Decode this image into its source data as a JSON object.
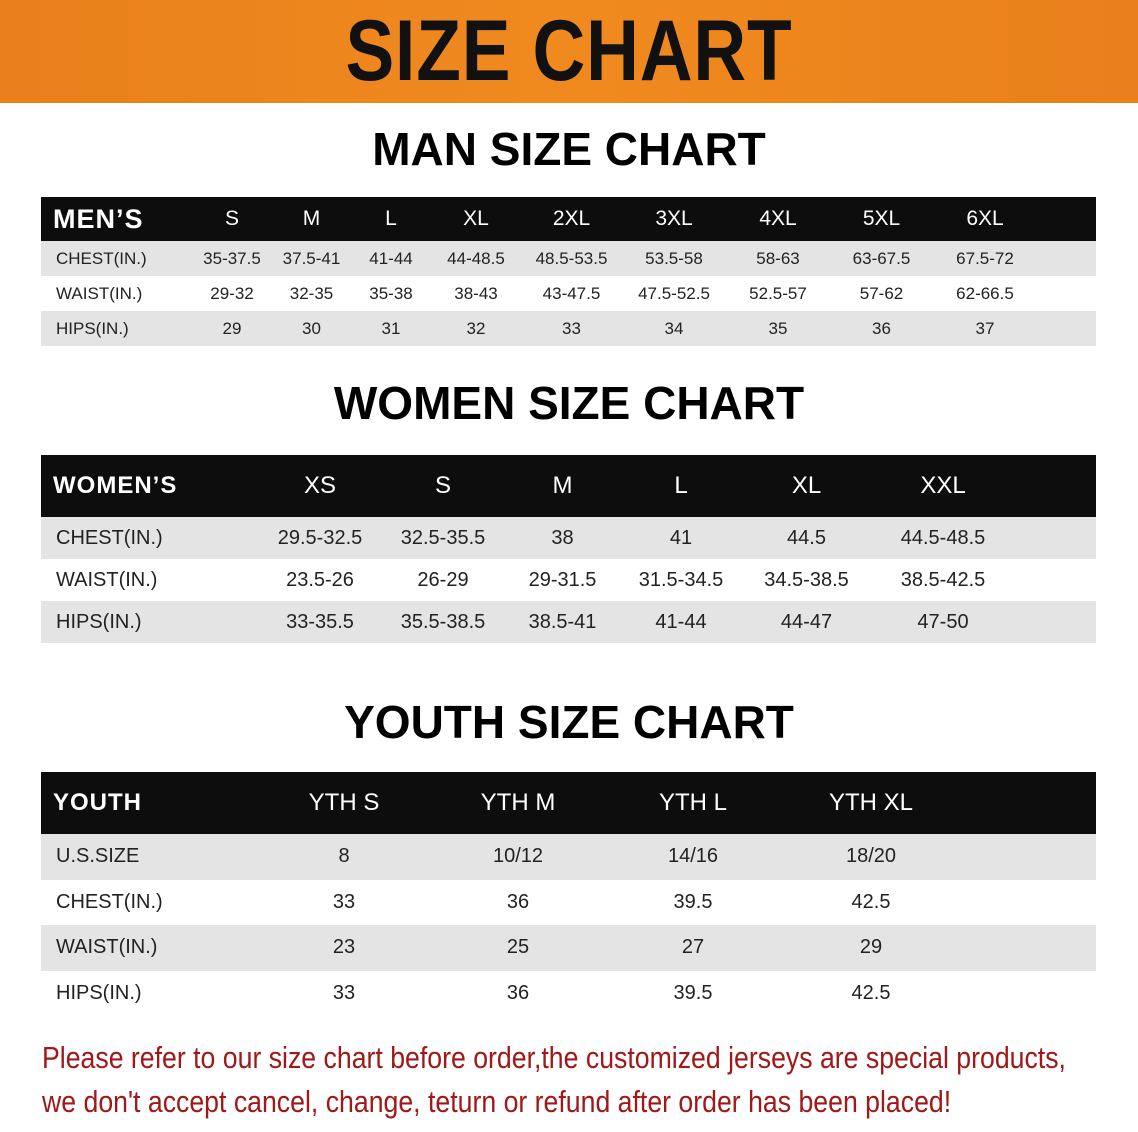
{
  "banner_title": "SIZE CHART",
  "men": {
    "title": "MAN SIZE CHART",
    "header": [
      "MEN’S",
      "S",
      "M",
      "L",
      "XL",
      "2XL",
      "3XL",
      "4XL",
      "5XL",
      "6XL"
    ],
    "rows": [
      [
        "CHEST(IN.)",
        "35-37.5",
        "37.5-41",
        "41-44",
        "44-48.5",
        "48.5-53.5",
        "53.5-58",
        "58-63",
        "63-67.5",
        "67.5-72"
      ],
      [
        "WAIST(IN.)",
        "29-32",
        "32-35",
        "35-38",
        "38-43",
        "43-47.5",
        "47.5-52.5",
        "52.5-57",
        "57-62",
        "62-66.5"
      ],
      [
        "HIPS(IN.)",
        "29",
        "30",
        "31",
        "32",
        "33",
        "34",
        "35",
        "36",
        "37"
      ]
    ]
  },
  "women": {
    "title": "WOMEN SIZE CHART",
    "header": [
      "WOMEN’S",
      "XS",
      "S",
      "M",
      "L",
      "XL",
      "XXL"
    ],
    "rows": [
      [
        "CHEST(IN.)",
        "29.5-32.5",
        "32.5-35.5",
        "38",
        "41",
        "44.5",
        "44.5-48.5"
      ],
      [
        "WAIST(IN.)",
        "23.5-26",
        "26-29",
        "29-31.5",
        "31.5-34.5",
        "34.5-38.5",
        "38.5-42.5"
      ],
      [
        "HIPS(IN.)",
        "33-35.5",
        "35.5-38.5",
        "38.5-41",
        "41-44",
        "44-47",
        "47-50"
      ]
    ]
  },
  "youth": {
    "title": "YOUTH SIZE CHART",
    "header": [
      "YOUTH",
      "YTH S",
      "YTH M",
      "YTH L",
      "YTH XL"
    ],
    "rows": [
      [
        "U.S.SIZE",
        "8",
        "10/12",
        "14/16",
        "18/20"
      ],
      [
        "CHEST(IN.)",
        "33",
        "36",
        "39.5",
        "42.5"
      ],
      [
        "WAIST(IN.)",
        "23",
        "25",
        "27",
        "29"
      ],
      [
        "HIPS(IN.)",
        "33",
        "36",
        "39.5",
        "42.5"
      ]
    ]
  },
  "note": {
    "line1": "Please refer to our size chart before order,the customized jerseys are special products,",
    "line2": "we don't accept cancel, change, teturn or refund after order has been placed!"
  },
  "colors": {
    "banner": "#f08a1e",
    "header_row": "#0d0d0d",
    "stripe": "#e4e4e4",
    "note_text": "#a01818"
  }
}
